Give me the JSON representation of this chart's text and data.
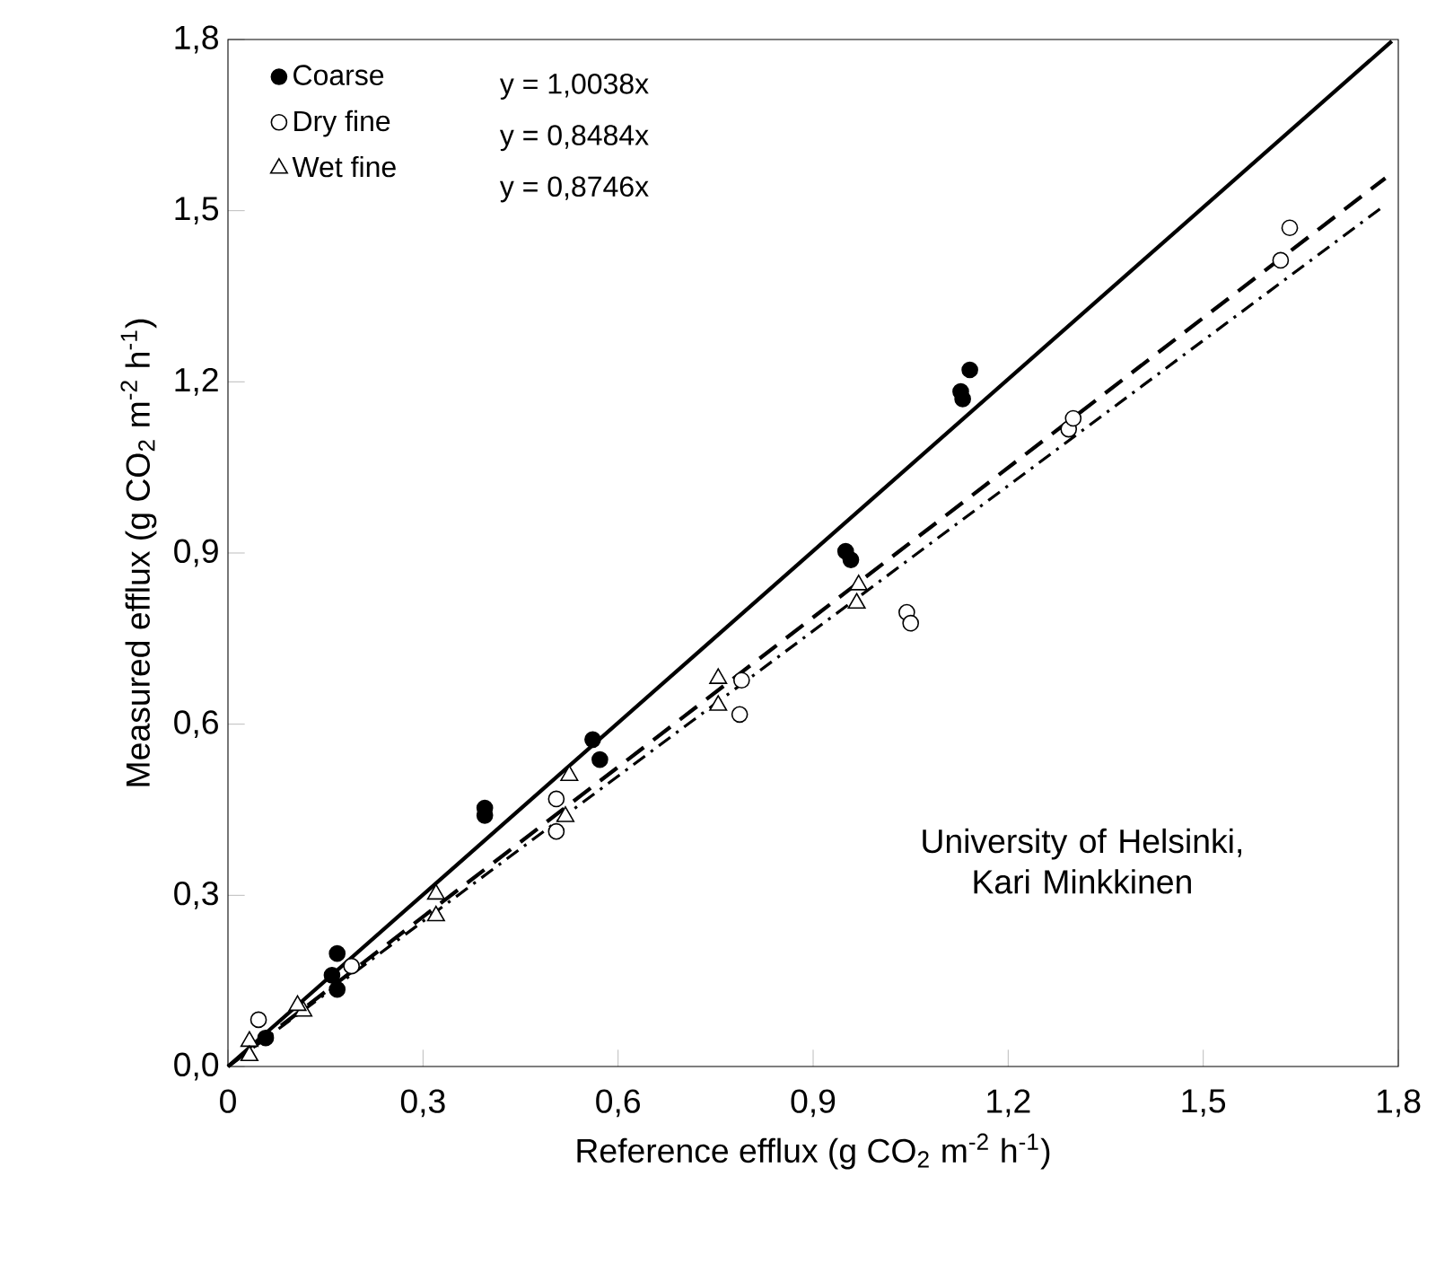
{
  "chart_data": {
    "type": "scatter",
    "xlabel": "Reference efflux (g CO$_{2}$ m$^{-2}$ h$^{-1}$)",
    "ylabel": "Measured efflux (g CO$_{2}$ m$^{-2}$ h$^{-1}$)",
    "xlim": [
      0,
      1.8
    ],
    "ylim": [
      0,
      1.8
    ],
    "xticks": [
      0,
      {
        "value": 0.3,
        "label": "0,3"
      },
      {
        "value": 0.6,
        "label": "0,6"
      },
      {
        "value": 0.9,
        "label": "0,9"
      },
      {
        "value": 1.2,
        "label": "1,2"
      },
      {
        "value": 1.5,
        "label": "1,5"
      },
      {
        "value": 1.8,
        "label": "1,8"
      }
    ],
    "yticks": [
      {
        "value": 0,
        "label": "0,0"
      },
      {
        "value": 0.3,
        "label": "0,3"
      },
      {
        "value": 0.6,
        "label": "0,6"
      },
      {
        "value": 0.9,
        "label": "0,9"
      },
      {
        "value": 1.2,
        "label": "1,2"
      },
      {
        "value": 1.5,
        "label": "1,5"
      },
      {
        "value": 1.8,
        "label": "1,8"
      }
    ],
    "grid": false,
    "legend": "top left",
    "annotations": [
      "y = 1,0038x",
      "y = 0,8484x",
      "y = 0,8746x",
      "University of Helsinki, Kari Minkkinen"
    ],
    "series": [
      {
        "name": "Coarse",
        "color": "#000000",
        "marker": "circle",
        "x": [
          0.058,
          0.168,
          0.168,
          0.16,
          0.395,
          0.395,
          0.561,
          0.572,
          0.95,
          0.958,
          1.127,
          1.13,
          1.141
        ],
        "values": [
          0.05,
          0.198,
          0.135,
          0.16,
          0.453,
          0.44,
          0.573,
          0.538,
          0.903,
          0.888,
          1.183,
          1.17,
          1.221
        ]
      },
      {
        "name": "Dry fine",
        "color": "#000000",
        "marker": "circle",
        "x": [
          0.047,
          0.19,
          0.505,
          0.505,
          0.79,
          0.787,
          1.044,
          1.05,
          1.293,
          1.3,
          1.619,
          1.633
        ],
        "values": [
          0.082,
          0.176,
          0.469,
          0.412,
          0.677,
          0.617,
          0.796,
          0.777,
          1.117,
          1.136,
          1.413,
          1.47
        ]
      },
      {
        "name": "Wet fine",
        "color": "#000000",
        "marker": "triangle",
        "x": [
          0.033,
          0.033,
          0.116,
          0.107,
          0.32,
          0.32,
          0.525,
          0.519,
          0.754,
          0.754,
          0.97,
          0.967
        ],
        "values": [
          0.044,
          0.019,
          0.097,
          0.107,
          0.302,
          0.264,
          0.51,
          0.438,
          0.68,
          0.633,
          0.844,
          0.812
        ]
      },
      {
        "type": "line",
        "color": "#000000",
        "line_style": "solid",
        "x": [
          0,
          1.79
        ],
        "values": [
          0,
          1.797
        ]
      },
      {
        "type": "line",
        "color": "#000000",
        "line_style": "dotted",
        "x": [
          0,
          1.78
        ],
        "values": [
          0,
          1.51
        ]
      },
      {
        "type": "line",
        "color": "#000000",
        "line_style": "dashed",
        "x": [
          0,
          1.78
        ],
        "values": [
          0,
          1.557
        ]
      }
    ]
  }
}
